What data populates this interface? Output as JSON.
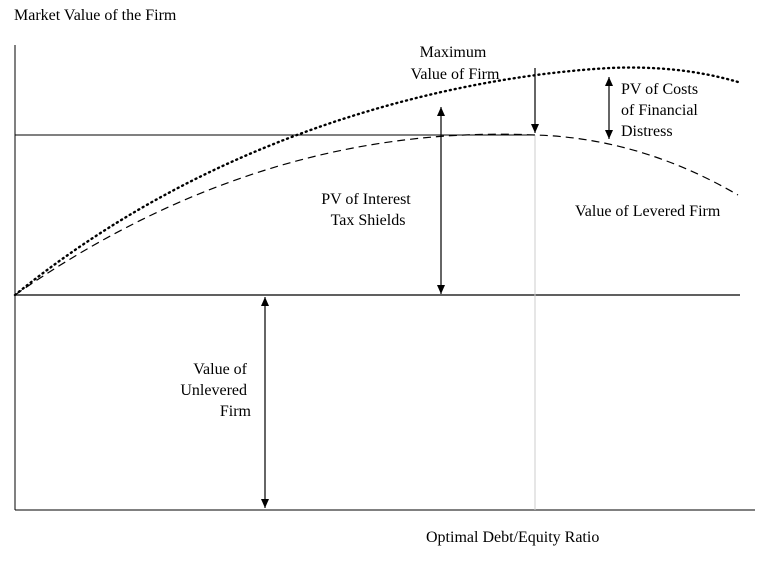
{
  "labels": {
    "y_axis_title": "Market Value of the Firm",
    "x_axis_title": "Optimal Debt/Equity Ratio",
    "max_value": [
      "Maximum",
      "Value of Firm"
    ],
    "pv_costs": [
      "PV of Costs",
      "of Financial",
      "Distress"
    ],
    "pv_tax": [
      "PV of Interest",
      "Tax Shields"
    ],
    "levered": "Value of Levered Firm",
    "unlevered": [
      "Value of",
      "Unlevered",
      "Firm"
    ]
  },
  "colors": {
    "line": "#000000",
    "optimal_line": "#cccccc"
  }
}
